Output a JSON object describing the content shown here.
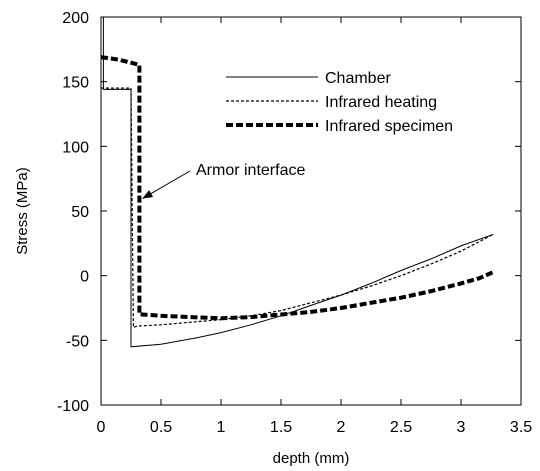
{
  "chart_data": {
    "type": "line",
    "title": "",
    "xlabel": "depth (mm)",
    "ylabel": "Stress (MPa)",
    "xlim": [
      0,
      3.5
    ],
    "ylim": [
      -100,
      200
    ],
    "xticks": [
      0,
      0.5,
      1,
      1.5,
      2,
      2.5,
      3,
      3.5
    ],
    "yticks": [
      -100,
      -50,
      0,
      50,
      100,
      150,
      200
    ],
    "xtick_labels": [
      "0",
      "0.5",
      "1",
      "1.5",
      "2",
      "2.5",
      "3",
      "3.5"
    ],
    "ytick_labels": [
      "-100",
      "-50",
      "0",
      "50",
      "100",
      "150",
      "200"
    ],
    "grid": false,
    "legend_position": "top-right",
    "series": [
      {
        "name": "Chamber",
        "style": "solid",
        "color": "#000000",
        "x": [
          0.02,
          0.02,
          0.02,
          0.25,
          0.25,
          0.5,
          0.8,
          1.0,
          1.25,
          1.5,
          1.75,
          2.0,
          2.25,
          2.5,
          2.75,
          3.0,
          3.27
        ],
        "y": [
          200,
          144,
          144,
          144,
          -55,
          -53,
          -48,
          -44,
          -38,
          -31,
          -23,
          -15,
          -6,
          4,
          13,
          23,
          32
        ]
      },
      {
        "name": "Infrared heating",
        "style": "dashed",
        "color": "#000000",
        "x": [
          0.0,
          0.25,
          0.27,
          0.3,
          0.5,
          0.75,
          1.0,
          1.25,
          1.5,
          1.75,
          2.0,
          2.25,
          2.5,
          2.75,
          3.0,
          3.27
        ],
        "y": [
          145,
          145,
          -40,
          -39,
          -38,
          -36,
          -34,
          -31,
          -27,
          -21,
          -15,
          -8,
          0,
          9,
          19,
          32
        ]
      },
      {
        "name": "Infrared specimen",
        "style": "heavy-dashed",
        "color": "#000000",
        "x": [
          0.0,
          0.15,
          0.32,
          0.32,
          0.35,
          0.5,
          0.75,
          1.0,
          1.25,
          1.5,
          1.75,
          2.0,
          2.25,
          2.5,
          2.75,
          3.0,
          3.15,
          3.25,
          3.28
        ],
        "y": [
          169,
          167,
          163,
          -30,
          -30,
          -31,
          -32,
          -33,
          -32,
          -30,
          -28,
          -25,
          -21,
          -17,
          -12,
          -6,
          -2,
          2,
          3
        ]
      }
    ],
    "annotations": [
      {
        "text": "Armor interface",
        "arrow_to": {
          "x": 0.32,
          "y": 55
        }
      }
    ]
  }
}
